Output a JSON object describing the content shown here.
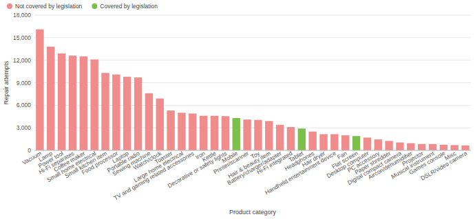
{
  "chart_data": {
    "type": "bar",
    "x_label": "Product category",
    "y_label": "Repair attempts",
    "categories": [
      "Vacuum",
      "Lamp",
      "Power tool",
      "Hi-Fi separates",
      "Coffee maker",
      "Small home electrical",
      "Small kitchen item",
      "Food processor",
      "Laptop",
      "Portable radio",
      "Sewing machine",
      "Watch/clock",
      "Toaster",
      "Large home electrical",
      "TV and gaming related accessories",
      "Iron",
      "Kettle",
      "Decorative or safety lights",
      "Mobile",
      "Printer/scanner",
      "Toy",
      "Hair & beauty item",
      "Battery/charger/adapter",
      "Hi-Fi integrated",
      "Tablet",
      "Headphones",
      "Hair dryer",
      "Handheld entertainment device",
      "Fan",
      "Flat screen",
      "Desktop computer",
      "PC accessory",
      "Paper shredder",
      "Digital compact camera",
      "Aircon/dehumidifier",
      "Projector",
      "Musical instrument",
      "Games console",
      "Misc",
      "DSLR/video camera"
    ],
    "series": [
      {
        "name": "Not covered by legislation",
        "color": "#f08c8c",
        "values": [
          16100,
          13800,
          12900,
          12600,
          12500,
          12100,
          10300,
          10100,
          9800,
          9700,
          7600,
          6900,
          5300,
          5000,
          4900,
          4600,
          4600,
          4550,
          null,
          4100,
          4050,
          3900,
          3400,
          3100,
          null,
          2500,
          2150,
          2150,
          2000,
          null,
          1700,
          1450,
          1250,
          1050,
          950,
          850,
          850,
          750,
          700,
          650
        ]
      },
      {
        "name": "Covered by legislation",
        "color": "#7cc04b",
        "values": [
          null,
          null,
          null,
          null,
          null,
          null,
          null,
          null,
          null,
          null,
          null,
          null,
          null,
          null,
          null,
          null,
          null,
          null,
          4300,
          null,
          null,
          null,
          null,
          null,
          2900,
          null,
          null,
          null,
          null,
          1900,
          null,
          null,
          null,
          null,
          null,
          null,
          null,
          null,
          null,
          null
        ]
      }
    ],
    "ylim": [
      0,
      18000
    ],
    "yticks": [
      0,
      {
        "value": 3000,
        "label": "3,000"
      },
      {
        "value": 6000,
        "label": "6,000"
      },
      {
        "value": 9000,
        "label": "9,000"
      },
      {
        "value": 12000,
        "label": "12,000"
      },
      {
        "value": 15000,
        "label": "15,000"
      },
      {
        "value": 18000,
        "label": "18,000"
      }
    ],
    "grid": true,
    "legend": "top-left"
  }
}
